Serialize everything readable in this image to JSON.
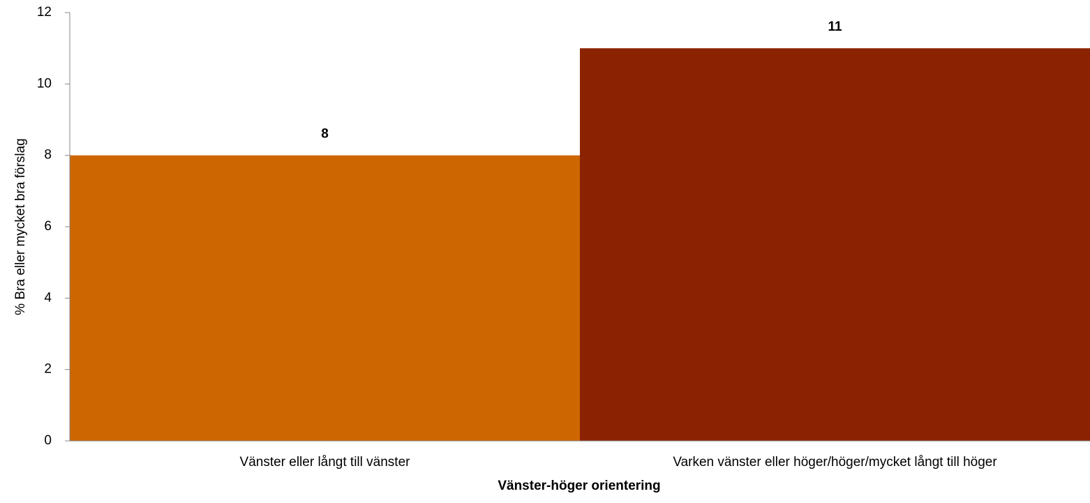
{
  "chart_data": {
    "type": "bar",
    "categories": [
      "Vänster eller långt till vänster",
      "Varken vänster eller höger/höger/mycket långt till höger"
    ],
    "values": [
      8,
      11
    ],
    "colors": [
      "#cd6600",
      "#8b2303"
    ],
    "x_label": "Vänster-höger orientering",
    "y_label": "% Bra eller mycket bra förslag",
    "ylim": [
      0,
      12
    ],
    "yticks": [
      0,
      2,
      4,
      6,
      8,
      10,
      12
    ],
    "grid": false
  }
}
